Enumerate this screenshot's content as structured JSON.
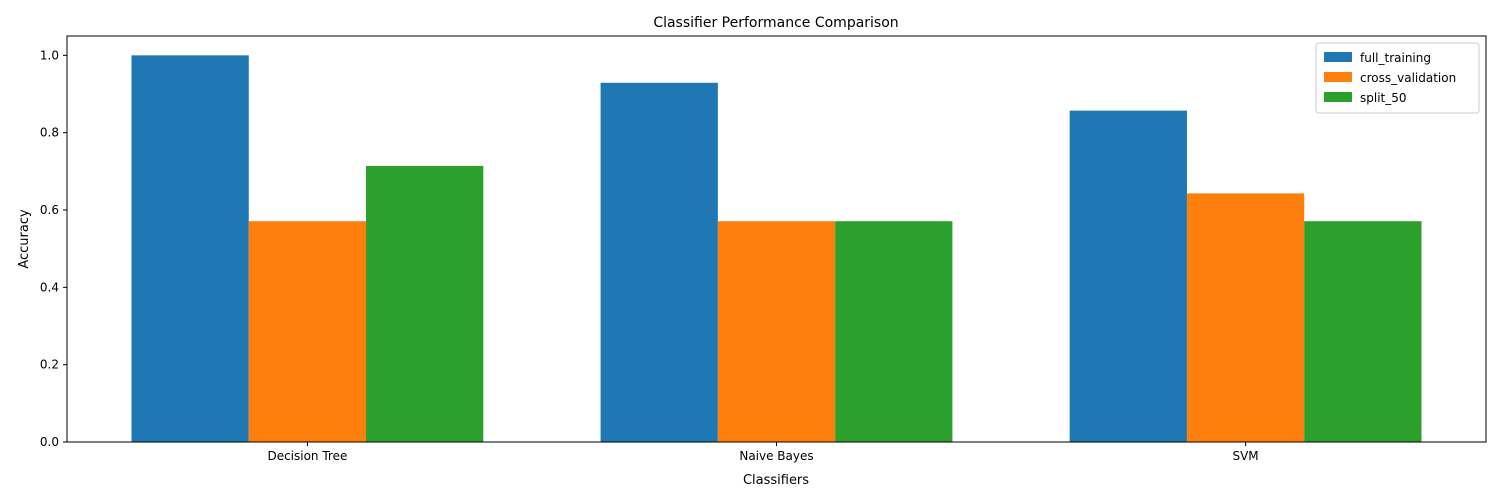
{
  "chart_data": {
    "type": "bar",
    "title": "Classifier Performance Comparison",
    "xlabel": "Classifiers",
    "ylabel": "Accuracy",
    "categories": [
      "Decision Tree",
      "Naive Bayes",
      "SVM"
    ],
    "series": [
      {
        "name": "full_training",
        "color": "#1f77b4",
        "values": [
          1.0,
          0.929,
          0.857
        ]
      },
      {
        "name": "cross_validation",
        "color": "#ff7f0e",
        "values": [
          0.571,
          0.571,
          0.643
        ]
      },
      {
        "name": "split_50",
        "color": "#2ca02c",
        "values": [
          0.714,
          0.571,
          0.571
        ]
      }
    ],
    "ylim": [
      0,
      1.05
    ],
    "yticks": [
      "0.0",
      "0.2",
      "0.4",
      "0.6",
      "0.8",
      "1.0"
    ],
    "grid": false,
    "legend_position": "top-right"
  }
}
